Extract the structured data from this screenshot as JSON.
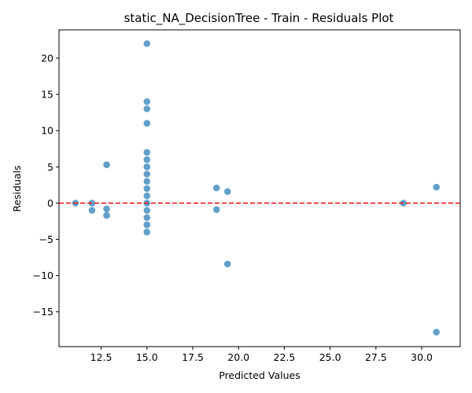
{
  "chart_data": {
    "type": "scatter",
    "title": "static_NA_DecisionTree - Train - Residuals Plot",
    "xlabel": "Predicted Values",
    "ylabel": "Residuals",
    "xlim": [
      10.2,
      32.1
    ],
    "ylim": [
      -19.8,
      23.9
    ],
    "xticks": [
      12.5,
      15.0,
      17.5,
      20.0,
      22.5,
      25.0,
      27.5,
      30.0
    ],
    "xtick_labels": [
      "12.5",
      "15.0",
      "17.5",
      "20.0",
      "22.5",
      "25.0",
      "27.5",
      "30.0"
    ],
    "yticks": [
      -15,
      -10,
      -5,
      0,
      5,
      10,
      15,
      20
    ],
    "ytick_labels": [
      "−15",
      "−10",
      "−5",
      "0",
      "5",
      "10",
      "15",
      "20"
    ],
    "grid": false,
    "reference_line": {
      "y": 0,
      "style": "dashed",
      "color": "#e41a1c"
    },
    "point_color": "#1f77b4",
    "points": [
      {
        "x": 11.1,
        "y": 0.0
      },
      {
        "x": 12.0,
        "y": 0.0
      },
      {
        "x": 12.0,
        "y": -1.0
      },
      {
        "x": 12.8,
        "y": 5.3
      },
      {
        "x": 12.8,
        "y": -0.8
      },
      {
        "x": 12.8,
        "y": -1.7
      },
      {
        "x": 15.0,
        "y": 22.0
      },
      {
        "x": 15.0,
        "y": 14.0
      },
      {
        "x": 15.0,
        "y": 13.0
      },
      {
        "x": 15.0,
        "y": 11.0
      },
      {
        "x": 15.0,
        "y": 7.0
      },
      {
        "x": 15.0,
        "y": 6.0
      },
      {
        "x": 15.0,
        "y": 5.0
      },
      {
        "x": 15.0,
        "y": 4.0
      },
      {
        "x": 15.0,
        "y": 3.0
      },
      {
        "x": 15.0,
        "y": 2.0
      },
      {
        "x": 15.0,
        "y": 1.0
      },
      {
        "x": 15.0,
        "y": 0.0
      },
      {
        "x": 15.0,
        "y": -1.0
      },
      {
        "x": 15.0,
        "y": -2.0
      },
      {
        "x": 15.0,
        "y": -3.0
      },
      {
        "x": 15.0,
        "y": -4.0
      },
      {
        "x": 18.8,
        "y": 2.1
      },
      {
        "x": 18.8,
        "y": -0.9
      },
      {
        "x": 19.4,
        "y": 1.6
      },
      {
        "x": 19.4,
        "y": -8.4
      },
      {
        "x": 29.0,
        "y": 0.0
      },
      {
        "x": 30.8,
        "y": 2.2
      },
      {
        "x": 30.8,
        "y": -17.8
      }
    ]
  }
}
